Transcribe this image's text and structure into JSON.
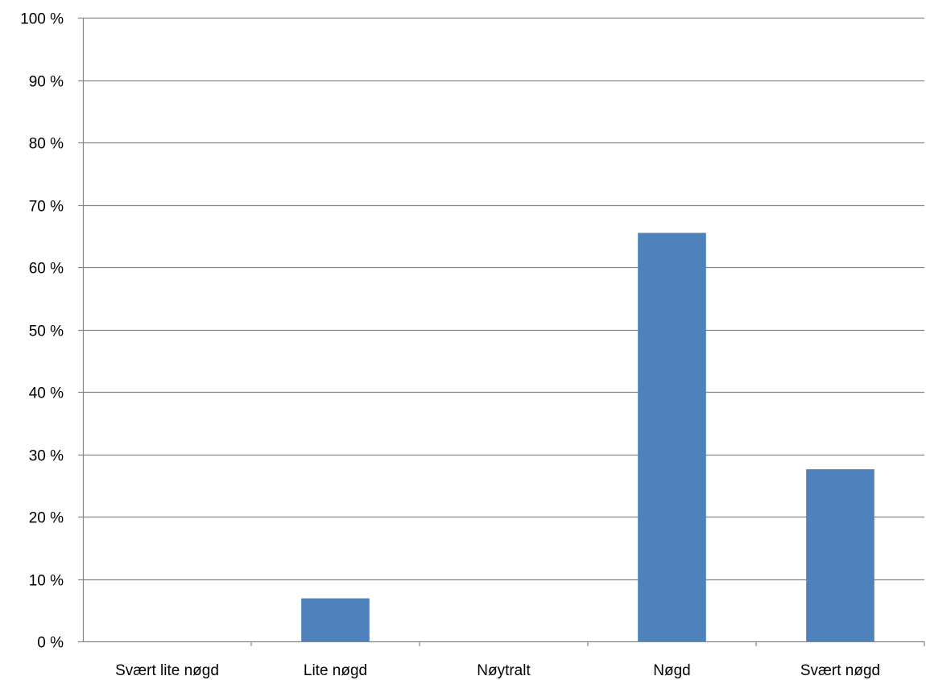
{
  "colors": {
    "bar": "#4f81bd",
    "grid": "#868686",
    "axis": "#868686",
    "background": "#ffffff"
  },
  "chart_data": {
    "type": "bar",
    "title": "",
    "xlabel": "",
    "ylabel": "",
    "categories": [
      "Svært lite nøgd",
      "Lite nøgd",
      "Nøytralt",
      "Nøgd",
      "Svært nøgd"
    ],
    "values": [
      0,
      6.9,
      0,
      65.5,
      27.6
    ],
    "ylim": [
      0,
      100
    ],
    "yticks": [
      0,
      10,
      20,
      30,
      40,
      50,
      60,
      70,
      80,
      90,
      100
    ],
    "ytick_labels": [
      "0 %",
      "10 %",
      "20 %",
      "30 %",
      "40 %",
      "50 %",
      "60 %",
      "70 %",
      "80 %",
      "90 %",
      "100 %"
    ],
    "grid": true,
    "legend": "none"
  }
}
